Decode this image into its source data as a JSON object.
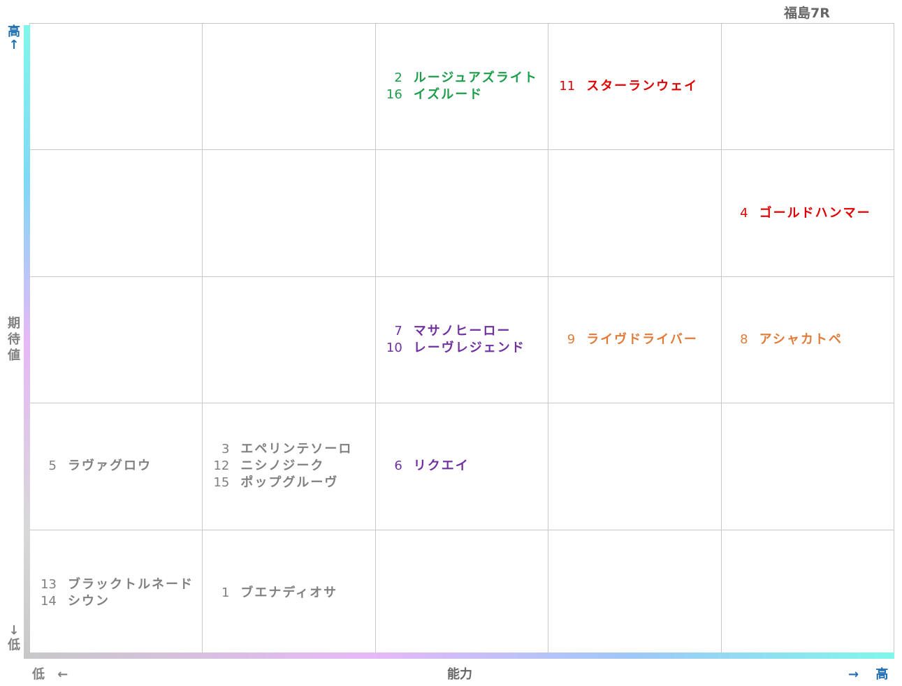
{
  "title": "福島7R",
  "y_axis": {
    "high": "高↑",
    "label": "期待値",
    "low": "↓低"
  },
  "x_axis": {
    "low": "低 ←",
    "label": "能力",
    "high": "→ 高"
  },
  "grid": [
    [
      {
        "horses": []
      },
      {
        "horses": []
      },
      {
        "color": "#1a9e4a",
        "horses": [
          {
            "number": 2,
            "name": "ルージュアズライト"
          },
          {
            "number": 16,
            "name": "イズルード"
          }
        ]
      },
      {
        "color": "#e00000",
        "horses": [
          {
            "number": 11,
            "name": "スターランウェイ"
          }
        ]
      },
      {
        "horses": []
      }
    ],
    [
      {
        "horses": []
      },
      {
        "horses": []
      },
      {
        "horses": []
      },
      {
        "horses": []
      },
      {
        "color": "#e00000",
        "horses": [
          {
            "number": 4,
            "name": "ゴールドハンマー"
          }
        ]
      }
    ],
    [
      {
        "horses": []
      },
      {
        "horses": []
      },
      {
        "color": "#7030a0",
        "horses": [
          {
            "number": 7,
            "name": "マサノヒーロー"
          },
          {
            "number": 10,
            "name": "レーヴレジェンド"
          }
        ]
      },
      {
        "color": "#e07b39",
        "horses": [
          {
            "number": 9,
            "name": "ライヴドライバー"
          }
        ]
      },
      {
        "color": "#e07b39",
        "horses": [
          {
            "number": 8,
            "name": "アシャカトペ"
          }
        ]
      }
    ],
    [
      {
        "color": "#808080",
        "horses": [
          {
            "number": 5,
            "name": "ラヴァグロウ"
          }
        ]
      },
      {
        "color": "#808080",
        "horses": [
          {
            "number": 3,
            "name": "エペリンテソーロ"
          },
          {
            "number": 12,
            "name": "ニシノジーク"
          },
          {
            "number": 15,
            "name": "ポップグルーヴ"
          }
        ]
      },
      {
        "color": "#7030a0",
        "horses": [
          {
            "number": 6,
            "name": "リクエイ"
          }
        ]
      },
      {
        "horses": []
      },
      {
        "horses": []
      }
    ],
    [
      {
        "color": "#808080",
        "horses": [
          {
            "number": 13,
            "name": "ブラックトルネード"
          },
          {
            "number": 14,
            "name": "シウン"
          }
        ]
      },
      {
        "color": "#808080",
        "horses": [
          {
            "number": 1,
            "name": "ブエナディオサ"
          }
        ]
      },
      {
        "horses": []
      },
      {
        "horses": []
      },
      {
        "horses": []
      }
    ]
  ]
}
